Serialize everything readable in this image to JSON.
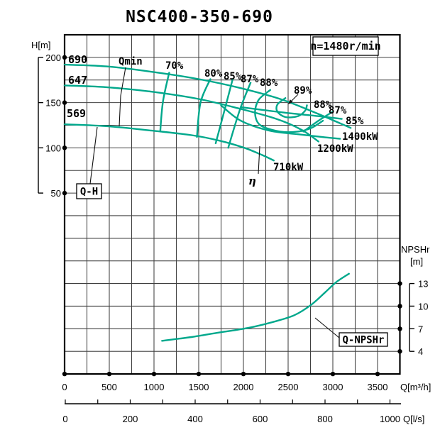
{
  "labels": {
    "qmin": "Qmin",
    "qh": "Q-H",
    "qnpshr": "Q-NPSHr",
    "eta": "η",
    "eff_right": [
      "88%",
      "87%",
      "85%"
    ],
    "npshr_line1": "NPSHr",
    "npshr_line2": "[m]"
  },
  "colors": {
    "curve": "#00A88C",
    "grid": "#404040",
    "frame": "#000000",
    "text": "#000000"
  },
  "chart_data": {
    "type": "line",
    "title": "NSC400-350-690",
    "speed": "n=1480r/min",
    "x_axis": {
      "label": "Q[m³/h]",
      "ticks": [
        0,
        500,
        1000,
        1500,
        2000,
        2500,
        3000,
        3500
      ],
      "range": [
        0,
        3750
      ],
      "grid_step": 250
    },
    "x_axis2": {
      "label": "Q[l/s]",
      "ticks": [
        0,
        200,
        400,
        600,
        800,
        1000
      ],
      "range": [
        0,
        1030
      ],
      "tick_step": 100
    },
    "y_axis_head": {
      "label": "H[m]",
      "ticks": [
        200,
        150,
        100,
        50
      ],
      "grid_step": 25,
      "range_top": 225
    },
    "y_axis_npshr": {
      "label": "NPSHr [m]",
      "ticks": [
        13,
        10,
        7,
        4
      ]
    },
    "grid": {
      "cols": 15,
      "rows": 15
    },
    "series": [
      {
        "id": "qh-690",
        "label": "690",
        "power": "1400kW",
        "yscale": "H",
        "points": [
          [
            0,
            192
          ],
          [
            470,
            190
          ],
          [
            980,
            184
          ],
          [
            1500,
            176
          ],
          [
            1970,
            166
          ],
          [
            2410,
            154
          ],
          [
            2800,
            139
          ],
          [
            3200,
            122
          ]
        ]
      },
      {
        "id": "qh-647",
        "label": "647",
        "power": "1200kW",
        "yscale": "H",
        "points": [
          [
            0,
            169
          ],
          [
            470,
            167
          ],
          [
            980,
            162
          ],
          [
            1500,
            154
          ],
          [
            1970,
            143
          ],
          [
            2370,
            132
          ],
          [
            2650,
            120
          ],
          [
            2840,
            107
          ]
        ]
      },
      {
        "id": "qh-569",
        "label": "569",
        "power": "710kW",
        "yscale": "H",
        "points": [
          [
            0,
            126
          ],
          [
            470,
            124
          ],
          [
            980,
            119
          ],
          [
            1420,
            114
          ],
          [
            1730,
            108
          ],
          [
            2010,
            100
          ],
          [
            2210,
            92
          ],
          [
            2340,
            86
          ]
        ]
      },
      {
        "id": "eff-70",
        "label": "70%",
        "yscale": "H",
        "points": [
          [
            1170,
            183
          ],
          [
            1100,
            151
          ],
          [
            1070,
            118
          ]
        ]
      },
      {
        "id": "eff-80",
        "label": "80%",
        "yscale": "H",
        "points": [
          [
            1630,
            176
          ],
          [
            1520,
            150
          ],
          [
            1480,
            112
          ]
        ]
      },
      {
        "id": "eff-85",
        "label": "85%",
        "yscale": "H",
        "points": [
          [
            1880,
            176
          ],
          [
            1790,
            142
          ],
          [
            1690,
            105
          ]
        ]
      },
      {
        "id": "eff-87",
        "label": "87%",
        "yscale": "H",
        "points": [
          [
            2080,
            172
          ],
          [
            1960,
            142
          ],
          [
            1830,
            100
          ]
        ]
      },
      {
        "id": "eff-88-loop",
        "label": "88%",
        "yscale": "H",
        "points": [
          [
            2300,
            164
          ],
          [
            2170,
            153
          ],
          [
            2130,
            138
          ],
          [
            2190,
            125
          ],
          [
            2410,
            118
          ],
          [
            2610,
            118
          ],
          [
            2760,
            122
          ],
          [
            2890,
            130
          ]
        ]
      },
      {
        "id": "eff-89-loop",
        "label": "89%",
        "yscale": "H",
        "points": [
          [
            2470,
            155
          ],
          [
            2380,
            148
          ],
          [
            2380,
            140
          ],
          [
            2470,
            134
          ],
          [
            2610,
            135
          ],
          [
            2690,
            141
          ],
          [
            2710,
            147
          ]
        ]
      },
      {
        "id": "eff-87-sweep",
        "label": "",
        "yscale": "H",
        "points": [
          [
            1750,
            147
          ],
          [
            1970,
            130
          ],
          [
            2290,
            119
          ],
          [
            2610,
            115
          ],
          [
            2880,
            112
          ],
          [
            3080,
            110
          ]
        ]
      },
      {
        "id": "eff-85-right",
        "label": "",
        "yscale": "H",
        "points": [
          [
            1970,
            145
          ],
          [
            2450,
            139
          ],
          [
            2840,
            135
          ],
          [
            3100,
            132
          ]
        ]
      },
      {
        "id": "eff-87-right",
        "label": "",
        "yscale": "H",
        "points": [
          [
            3000,
            140
          ],
          [
            2840,
            130
          ],
          [
            2670,
            118
          ]
        ]
      },
      {
        "id": "q-npshr",
        "label": "Q-NPSHr",
        "yscale": "N",
        "points": [
          [
            1090,
            5.4
          ],
          [
            1420,
            5.9
          ],
          [
            1730,
            6.5
          ],
          [
            2050,
            7.1
          ],
          [
            2330,
            7.9
          ],
          [
            2570,
            8.8
          ],
          [
            2760,
            10.2
          ],
          [
            2920,
            11.9
          ],
          [
            3040,
            13.2
          ],
          [
            3180,
            14.3
          ]
        ]
      }
    ]
  }
}
